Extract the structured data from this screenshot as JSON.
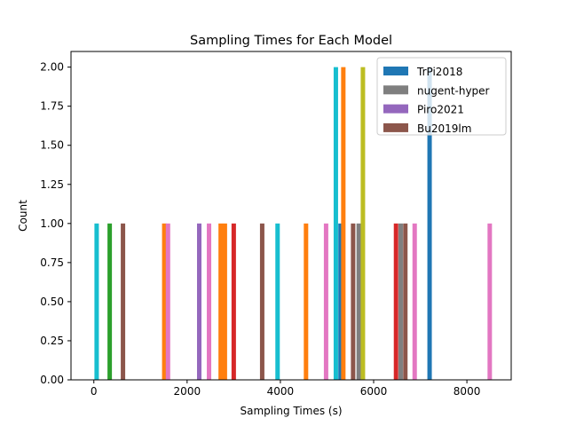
{
  "chart_data": {
    "type": "bar",
    "title": "Sampling Times for Each Model",
    "xlabel": "Sampling Times (s)",
    "ylabel": "Count",
    "xlim": [
      -490,
      8950
    ],
    "ylim": [
      0,
      2.1
    ],
    "xticks": [
      {
        "value": 0,
        "label": "0"
      },
      {
        "value": 2000,
        "label": "2000"
      },
      {
        "value": 4000,
        "label": "4000"
      },
      {
        "value": 6000,
        "label": "6000"
      },
      {
        "value": 8000,
        "label": "8000"
      }
    ],
    "yticks": [
      {
        "value": 0,
        "label": "0.00"
      },
      {
        "value": 0.25,
        "label": "0.25"
      },
      {
        "value": 0.5,
        "label": "0.50"
      },
      {
        "value": 0.75,
        "label": "0.75"
      },
      {
        "value": 1.0,
        "label": "1.00"
      },
      {
        "value": 1.25,
        "label": "1.25"
      },
      {
        "value": 1.5,
        "label": "1.50"
      },
      {
        "value": 1.75,
        "label": "1.75"
      },
      {
        "value": 2.0,
        "label": "2.00"
      }
    ],
    "grid": false,
    "legend_position": "top-right",
    "legend": [
      {
        "label": "TrPi2018",
        "color": "#1f77b4"
      },
      {
        "label": "nugent-hyper",
        "color": "#7f7f7f"
      },
      {
        "label": "Piro2021",
        "color": "#9467bd"
      },
      {
        "label": "Bu2019lm",
        "color": "#8c564b"
      }
    ],
    "bars": [
      {
        "x": 60,
        "count": 1,
        "color": "#17becf"
      },
      {
        "x": 340,
        "count": 1,
        "color": "#2ca02c"
      },
      {
        "x": 625,
        "count": 1,
        "color": "#8c564b"
      },
      {
        "x": 1510,
        "count": 1,
        "color": "#ff7f0e"
      },
      {
        "x": 1590,
        "count": 1,
        "color": "#e377c2"
      },
      {
        "x": 2260,
        "count": 1,
        "color": "#9467bd"
      },
      {
        "x": 2470,
        "count": 1,
        "color": "#e377c2"
      },
      {
        "x": 2720,
        "count": 1,
        "color": "#ff7f0e"
      },
      {
        "x": 2810,
        "count": 1,
        "color": "#ff7f0e"
      },
      {
        "x": 3000,
        "count": 1,
        "color": "#d62728"
      },
      {
        "x": 3610,
        "count": 1,
        "color": "#8c564b"
      },
      {
        "x": 3940,
        "count": 1,
        "color": "#17becf"
      },
      {
        "x": 4550,
        "count": 1,
        "color": "#ff7f0e"
      },
      {
        "x": 4980,
        "count": 1,
        "color": "#e377c2"
      },
      {
        "x": 5190,
        "count": 2,
        "color": "#17becf"
      },
      {
        "x": 5290,
        "count": 1,
        "color": "#1f77b4"
      },
      {
        "x": 5350,
        "count": 2,
        "color": "#ff7f0e"
      },
      {
        "x": 5560,
        "count": 1,
        "color": "#8c564b"
      },
      {
        "x": 5680,
        "count": 1,
        "color": "#7f7f7f"
      },
      {
        "x": 5770,
        "count": 2,
        "color": "#bcbd22"
      },
      {
        "x": 6480,
        "count": 1,
        "color": "#d62728"
      },
      {
        "x": 6580,
        "count": 1,
        "color": "#7f7f7f"
      },
      {
        "x": 6680,
        "count": 1,
        "color": "#8c564b"
      },
      {
        "x": 6880,
        "count": 1,
        "color": "#e377c2"
      },
      {
        "x": 7200,
        "count": 2,
        "color": "#1f77b4"
      },
      {
        "x": 8490,
        "count": 1,
        "color": "#e377c2"
      }
    ]
  }
}
